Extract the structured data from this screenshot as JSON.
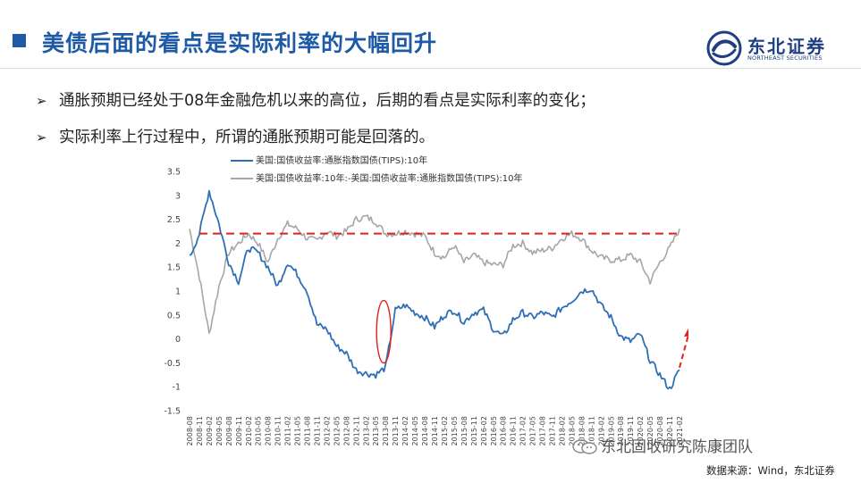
{
  "slide": {
    "title": "美债后面的看点是实际利率的大幅回升",
    "bullets": [
      "通胀预期已经处于08年金融危机以来的高位，后期的看点是实际利率的变化；",
      "实际利率上行过程中，所谓的通胀预期可能是回落的。"
    ],
    "logo": {
      "cn": "东北证券",
      "en": "NORTHEAST SECURITIES"
    },
    "watermark": "东北固收研究陈康团队",
    "source": "数据来源：Wind，东北证券",
    "colors": {
      "title": "#1f5aa6",
      "logo": "#1f3f82"
    }
  },
  "chart_data": {
    "type": "line",
    "title": "",
    "xlabel": "",
    "ylabel": "",
    "ylim": [
      -1.5,
      3.5
    ],
    "yticks": [
      "3.5",
      "3",
      "2.5",
      "2",
      "1.5",
      "1",
      "0.5",
      "0",
      "-0.5",
      "-1",
      "-1.5"
    ],
    "x_labels": [
      "2008-08",
      "2008-11",
      "2009-02",
      "2009-05",
      "2009-08",
      "2009-11",
      "2010-02",
      "2010-05",
      "2010-08",
      "2010-11",
      "2011-02",
      "2011-05",
      "2011-08",
      "2011-11",
      "2012-02",
      "2012-05",
      "2012-08",
      "2012-11",
      "2013-02",
      "2013-05",
      "2013-08",
      "2013-11",
      "2014-02",
      "2014-05",
      "2014-08",
      "2014-11",
      "2015-02",
      "2015-05",
      "2015-08",
      "2015-11",
      "2016-02",
      "2016-05",
      "2016-08",
      "2016-11",
      "2017-02",
      "2017-05",
      "2017-08",
      "2017-11",
      "2018-02",
      "2018-05",
      "2018-08",
      "2018-11",
      "2019-02",
      "2019-05",
      "2019-08",
      "2019-11",
      "2020-02",
      "2020-05",
      "2020-08",
      "2020-11",
      "2021-02"
    ],
    "legend_position": "top",
    "series": [
      {
        "name": "美国:国债收益率:通胀指数国债(TIPS):10年",
        "color": "#2e6fb5",
        "values": [
          1.7,
          2.2,
          3.1,
          2.4,
          1.6,
          1.2,
          1.9,
          1.8,
          1.5,
          1.1,
          1.6,
          1.35,
          1.0,
          0.3,
          0.2,
          -0.15,
          -0.3,
          -0.65,
          -0.72,
          -0.75,
          -0.6,
          0.6,
          0.7,
          0.55,
          0.45,
          0.25,
          0.5,
          0.6,
          0.35,
          0.55,
          0.6,
          0.2,
          0.05,
          0.4,
          0.55,
          0.45,
          0.55,
          0.45,
          0.65,
          0.8,
          1.0,
          1.05,
          0.7,
          0.45,
          0.05,
          -0.05,
          0.1,
          -0.45,
          -0.75,
          -1.05,
          -0.65
        ]
      },
      {
        "name": "美国:国债收益率:10年:-美国:国债收益率:通胀指数国债(TIPS):10年",
        "color": "#a6a6a6",
        "values": [
          2.3,
          1.3,
          0.1,
          1.1,
          1.8,
          2.0,
          2.2,
          2.0,
          1.6,
          2.1,
          2.4,
          2.3,
          2.1,
          2.05,
          2.25,
          2.15,
          2.25,
          2.5,
          2.55,
          2.45,
          2.2,
          2.2,
          2.25,
          2.2,
          2.15,
          1.8,
          1.7,
          1.95,
          1.6,
          1.75,
          1.6,
          1.55,
          1.55,
          1.95,
          2.0,
          1.8,
          1.85,
          1.9,
          2.1,
          2.2,
          2.1,
          1.85,
          1.7,
          1.65,
          1.65,
          1.75,
          1.6,
          1.2,
          1.6,
          1.9,
          2.3
        ]
      }
    ],
    "reference_line": {
      "value": 2.2,
      "color": "#e02020",
      "style": "dashed"
    },
    "annotations": [
      {
        "shape": "ellipse",
        "x": "2013-08",
        "y_center": 0.15,
        "color": "#e02020"
      },
      {
        "shape": "arrow",
        "x": "2021-02",
        "y_from": -0.6,
        "y_to": 0.2,
        "color": "#e02020",
        "style": "dashed"
      }
    ]
  }
}
